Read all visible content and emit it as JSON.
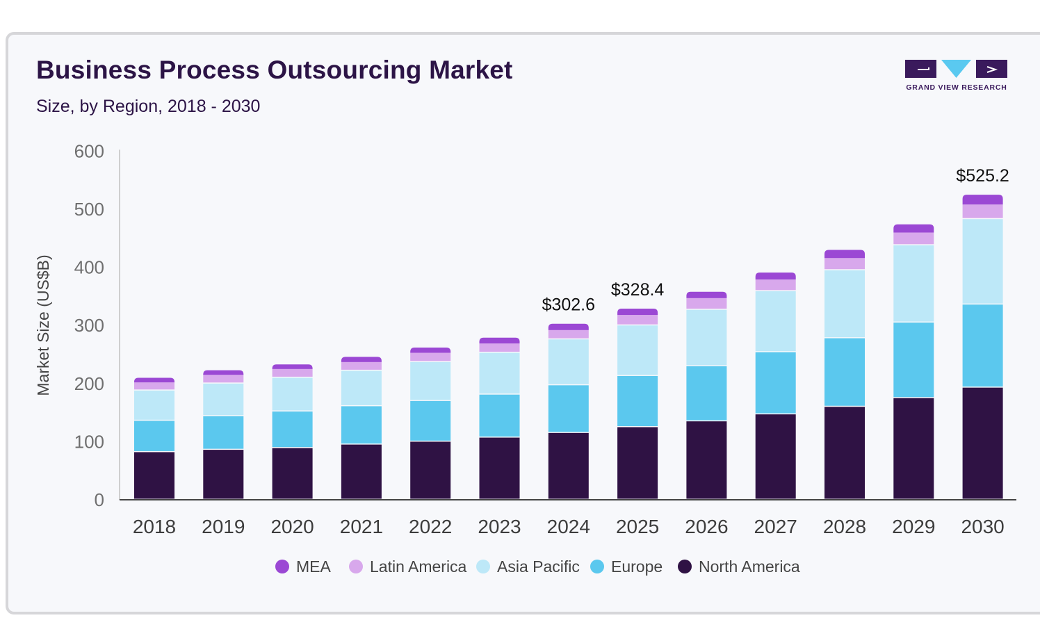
{
  "header": {
    "title": "Business Process Outsourcing Market",
    "subtitle": "Size, by Region, 2018 - 2030",
    "logo_text": "GRAND VIEW RESEARCH"
  },
  "chart_data": {
    "type": "bar",
    "stacked": true,
    "categories": [
      "2018",
      "2019",
      "2020",
      "2021",
      "2022",
      "2023",
      "2024",
      "2025",
      "2026",
      "2027",
      "2028",
      "2029",
      "2030"
    ],
    "ylabel": "Market Size (US$B)",
    "ylim": [
      0,
      600
    ],
    "yticks": [
      0,
      100,
      200,
      300,
      400,
      500,
      600
    ],
    "legend_position": "bottom",
    "series": [
      {
        "name": "North America",
        "color": "#2f1244",
        "values": [
          82,
          86,
          89,
          95,
          100,
          107,
          115,
          125,
          135,
          147,
          160,
          175,
          193
        ]
      },
      {
        "name": "Europe",
        "color": "#5bc8ee",
        "values": [
          54,
          58,
          63,
          66,
          70,
          74,
          82,
          88,
          95,
          107,
          118,
          130,
          143
        ]
      },
      {
        "name": "Asia Pacific",
        "color": "#bde8f8",
        "values": [
          52,
          56,
          58,
          61,
          67,
          72,
          79,
          87,
          97,
          105,
          117,
          133,
          147
        ]
      },
      {
        "name": "Latin America",
        "color": "#d8a8ec",
        "values": [
          14,
          15,
          15,
          15,
          16,
          16,
          16,
          18,
          20,
          20,
          21,
          22,
          25
        ]
      },
      {
        "name": "MEA",
        "color": "#9b48d4",
        "values": [
          8,
          8,
          8,
          9,
          9,
          10,
          11,
          11,
          11,
          12,
          14,
          14,
          17
        ]
      }
    ],
    "legend_order": [
      "MEA",
      "Latin America",
      "Asia Pacific",
      "Europe",
      "North America"
    ],
    "data_labels": [
      {
        "category": "2024",
        "text": "$302.6"
      },
      {
        "category": "2025",
        "text": "$328.4"
      },
      {
        "category": "2030",
        "text": "$525.2"
      }
    ]
  }
}
